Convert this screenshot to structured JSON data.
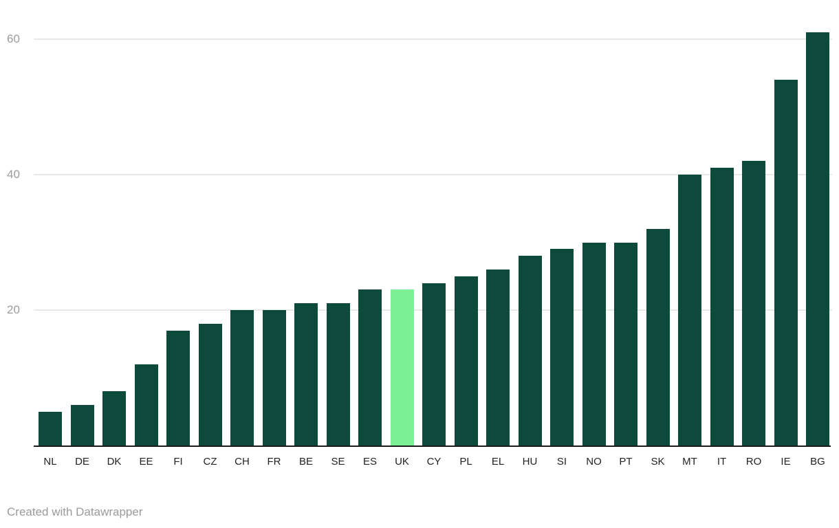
{
  "chart_data": {
    "type": "bar",
    "categories": [
      "NL",
      "DE",
      "DK",
      "EE",
      "FI",
      "CZ",
      "CH",
      "FR",
      "BE",
      "SE",
      "ES",
      "UK",
      "CY",
      "PL",
      "EL",
      "HU",
      "SI",
      "NO",
      "PT",
      "SK",
      "MT",
      "IT",
      "RO",
      "IE",
      "BG"
    ],
    "values": [
      5,
      6,
      8,
      12,
      17,
      18,
      20,
      20,
      21,
      21,
      23,
      23,
      24,
      25,
      26,
      28,
      29,
      30,
      30,
      32,
      40,
      41,
      42,
      54,
      61
    ],
    "highlighted_category": "UK",
    "y_ticks": [
      20,
      40,
      60
    ],
    "ylim": [
      0,
      62.5
    ],
    "grid": true,
    "legend_position": "none",
    "bar_color": "#0d4a3c",
    "highlight_color": "#7df096"
  },
  "footer": {
    "credit": "Created with Datawrapper"
  },
  "colors": {
    "background": "#ffffff",
    "gridline": "#e8e8e8",
    "axis_line": "#1a1a1a",
    "y_tick_text": "#9a9a9a",
    "x_label_text": "#222222",
    "footer_text": "#9a9a9a"
  }
}
